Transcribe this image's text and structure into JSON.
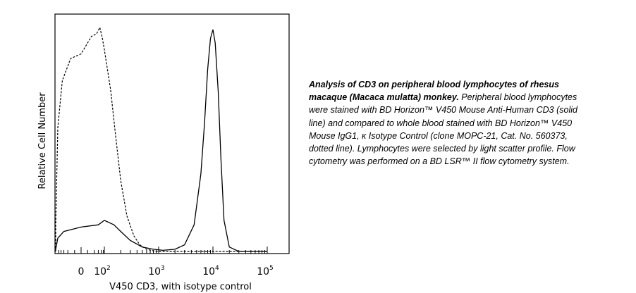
{
  "chart_data": {
    "type": "line",
    "xlabel": "V450 CD3, with isotype control",
    "ylabel": "Relative Cell Number",
    "x_scale": "biexponential",
    "x_tick_labels": [
      {
        "text": "0",
        "exp": ""
      },
      {
        "text": "10",
        "exp": "2"
      },
      {
        "text": "10",
        "exp": "3"
      },
      {
        "text": "10",
        "exp": "4"
      },
      {
        "text": "10",
        "exp": "5"
      }
    ],
    "series": [
      {
        "name": "solid line",
        "style": "solid",
        "x": [
          -150,
          -100,
          -50,
          0,
          50,
          100,
          150,
          200,
          300,
          500,
          800,
          1200,
          2000,
          3000,
          4500,
          6000,
          7000,
          8000,
          9000,
          10000,
          11000,
          12500,
          14000,
          16000,
          20000,
          30000,
          100000
        ],
        "y": [
          0.01,
          0.06,
          0.09,
          0.11,
          0.12,
          0.14,
          0.12,
          0.09,
          0.05,
          0.02,
          0.01,
          0.005,
          0.01,
          0.03,
          0.12,
          0.35,
          0.58,
          0.82,
          0.96,
          1.0,
          0.94,
          0.72,
          0.42,
          0.14,
          0.02,
          0.0,
          0.0
        ]
      },
      {
        "name": "dotted line",
        "style": "dotted",
        "x": [
          -180,
          -150,
          -100,
          -60,
          -20,
          0,
          20,
          40,
          60,
          80,
          100,
          130,
          160,
          200,
          260,
          350,
          450,
          600,
          900,
          1500,
          5000,
          100000
        ],
        "y": [
          0.0,
          0.12,
          0.55,
          0.78,
          0.86,
          0.9,
          0.96,
          0.99,
          1.0,
          0.97,
          0.9,
          0.74,
          0.52,
          0.32,
          0.16,
          0.07,
          0.03,
          0.01,
          0.0,
          0.0,
          0.0,
          0.0
        ]
      }
    ],
    "legend": "none",
    "grid": false
  },
  "caption": {
    "title": "Analysis of CD3 on peripheral blood lymphocytes of rhesus macaque (Macaca mulatta) monkey.",
    "body": " Peripheral blood lymphocytes were stained with BD Horizon™ V450 Mouse Anti-Human CD3 (solid line) and compared to whole blood stained with BD Horizon™ V450 Mouse IgG1, κ Isotype Control (clone MOPC-21, Cat. No. 560373, dotted line). Lymphocytes were selected by light scatter profile. Flow cytometry was performed on a BD LSR™ II flow cytometry system."
  }
}
